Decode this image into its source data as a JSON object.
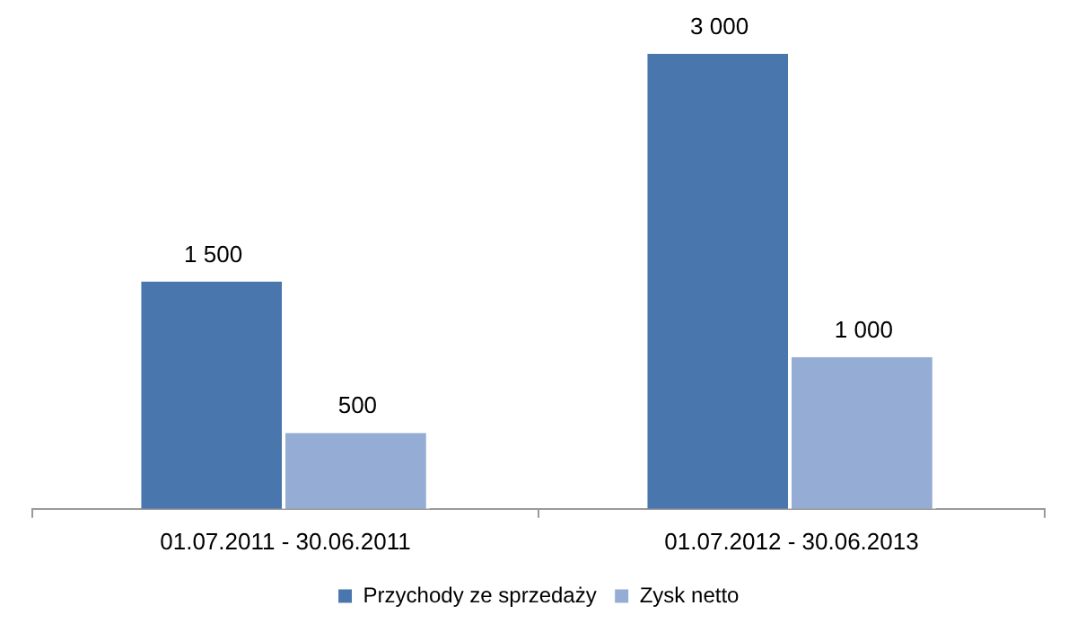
{
  "chart_data": {
    "type": "bar",
    "categories": [
      "01.07.2011 - 30.06.2011",
      "01.07.2012 - 30.06.2013"
    ],
    "series": [
      {
        "name": "Przychody ze sprzedaży",
        "color": "#4a76ae",
        "values": [
          1500,
          3000
        ]
      },
      {
        "name": "Zysk netto",
        "color": "#95acd4",
        "values": [
          500,
          1000
        ]
      }
    ],
    "data_labels": true,
    "legend": "bottom",
    "grid": false
  }
}
